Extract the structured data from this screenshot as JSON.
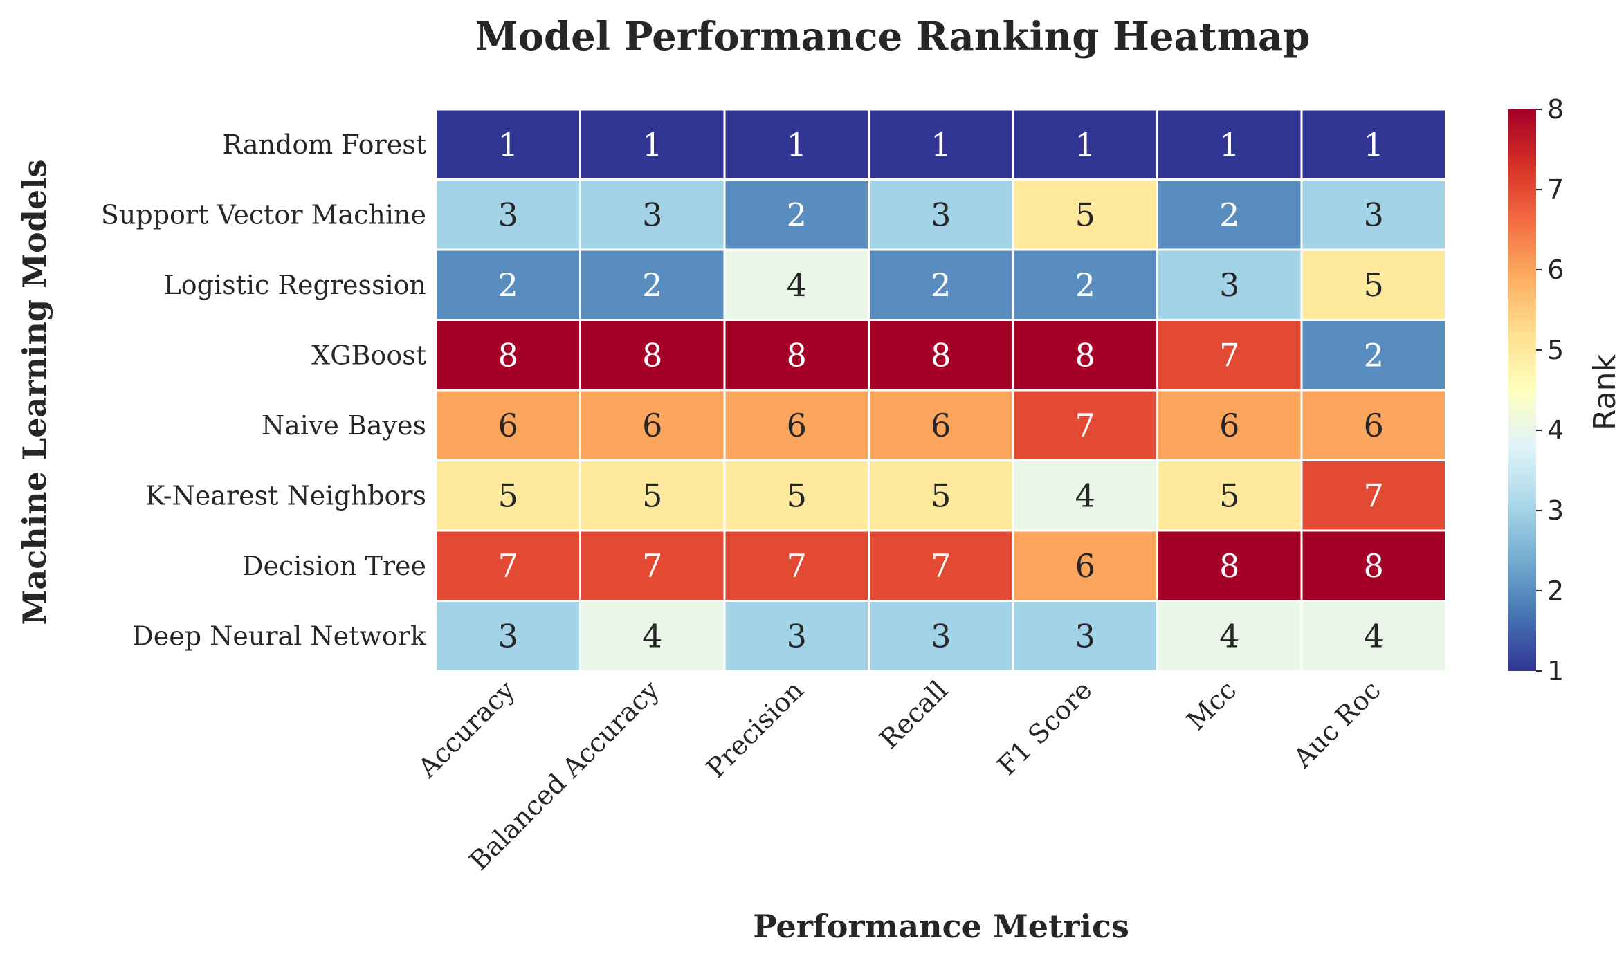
{
  "chart_data": {
    "type": "heatmap",
    "title": "Model Performance Ranking Heatmap",
    "xlabel": "Performance Metrics",
    "ylabel": "Machine Learning Models",
    "x_categories": [
      "Accuracy",
      "Balanced Accuracy",
      "Precision",
      "Recall",
      "F1 Score",
      "Mcc",
      "Auc Roc"
    ],
    "y_categories": [
      "Random Forest",
      "Support Vector Machine",
      "Logistic Regression",
      "XGBoost",
      "Naive Bayes",
      "K-Nearest Neighbors",
      "Decision Tree",
      "Deep Neural Network"
    ],
    "values": [
      [
        1,
        1,
        1,
        1,
        1,
        1,
        1
      ],
      [
        3,
        3,
        2,
        3,
        5,
        2,
        3
      ],
      [
        2,
        2,
        4,
        2,
        2,
        3,
        5
      ],
      [
        8,
        8,
        8,
        8,
        8,
        7,
        2
      ],
      [
        6,
        6,
        6,
        6,
        7,
        6,
        6
      ],
      [
        5,
        5,
        5,
        5,
        4,
        5,
        7
      ],
      [
        7,
        7,
        7,
        7,
        6,
        8,
        8
      ],
      [
        3,
        4,
        3,
        3,
        3,
        4,
        4
      ]
    ],
    "colorbar": {
      "label": "Rank",
      "range": [
        1,
        8
      ],
      "ticks": [
        1,
        2,
        3,
        4,
        5,
        6,
        7,
        8
      ],
      "colormap": "RdYlBu_r"
    },
    "annotations": true
  }
}
